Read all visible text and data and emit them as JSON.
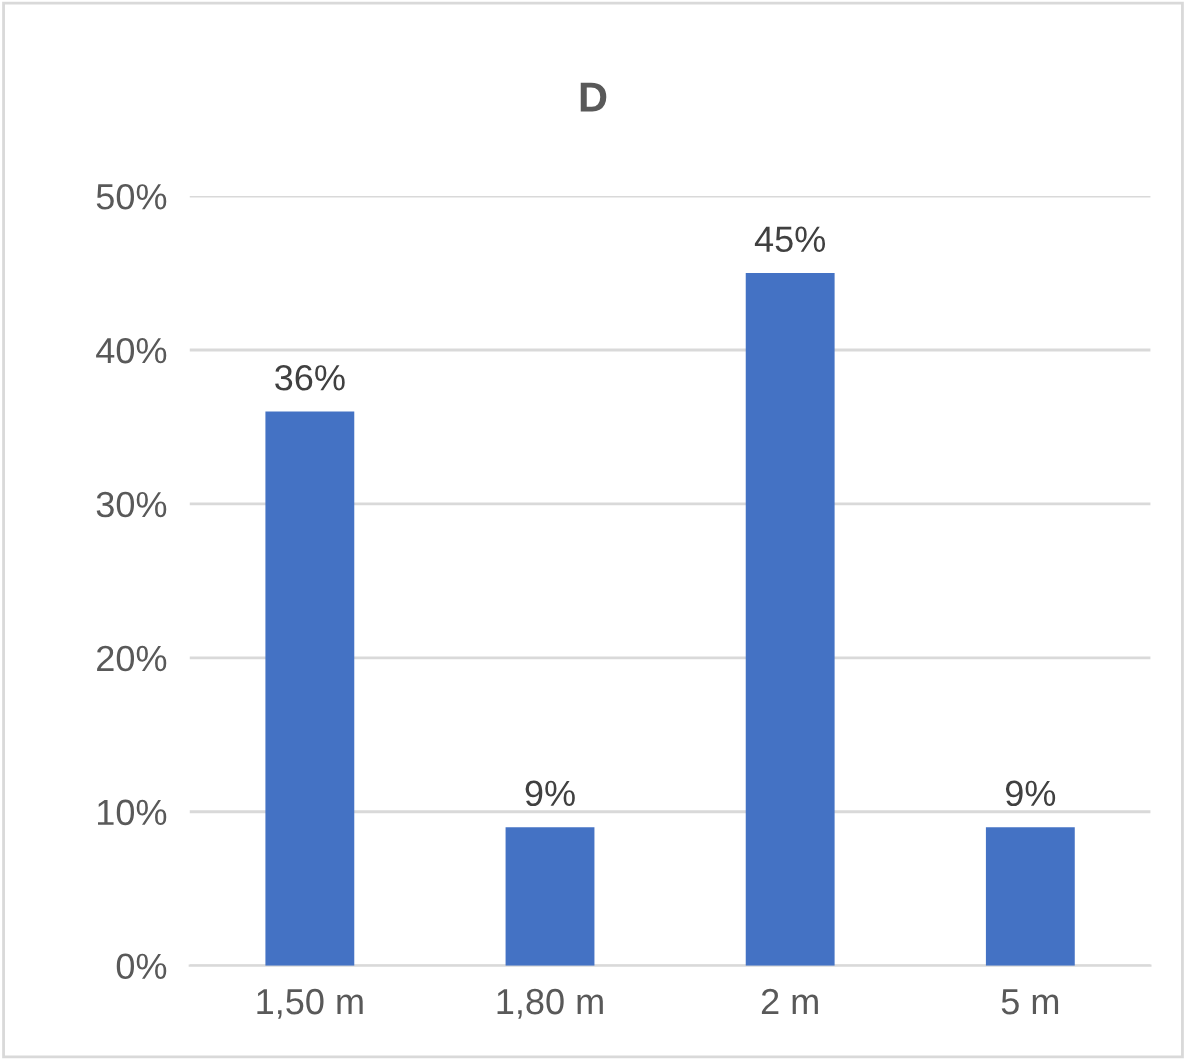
{
  "chart_data": {
    "type": "bar",
    "title": "D",
    "categories": [
      "1,50 m",
      "1,80 m",
      "2 m",
      "5 m"
    ],
    "values": [
      36,
      9,
      45,
      9
    ],
    "color": "#4472c4",
    "data_labels": true,
    "value_labels": [
      "36%",
      "9%",
      "45%",
      "9%"
    ],
    "ylim": [
      0,
      50
    ],
    "yticks": [
      {
        "value": 0,
        "label": "0%"
      },
      {
        "value": 10,
        "label": "10%"
      },
      {
        "value": 20,
        "label": "20%"
      },
      {
        "value": 30,
        "label": "30%"
      },
      {
        "value": 40,
        "label": "40%"
      },
      {
        "value": 50,
        "label": "50%"
      }
    ],
    "grid": "y",
    "legend": false
  }
}
